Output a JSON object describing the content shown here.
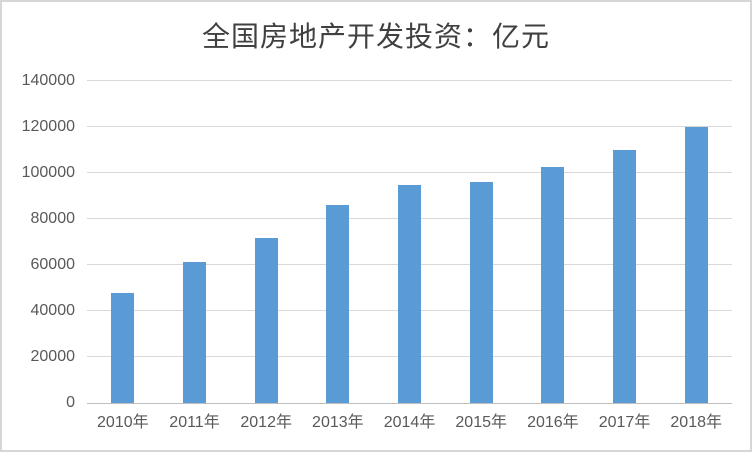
{
  "chart_data": {
    "type": "bar",
    "title": "全国房地产开发投资：亿元",
    "categories": [
      "2010年",
      "2011年",
      "2012年",
      "2013年",
      "2014年",
      "2015年",
      "2016年",
      "2017年",
      "2018年"
    ],
    "values": [
      48000,
      61500,
      71800,
      86000,
      95000,
      96000,
      102500,
      110000,
      120000
    ],
    "ylim": [
      0,
      140000
    ],
    "y_ticks": [
      0,
      20000,
      40000,
      60000,
      80000,
      100000,
      120000,
      140000
    ],
    "grid": true,
    "legend_position": "none",
    "colors": {
      "bar": "#5B9BD5",
      "gridline": "#D9D9D9",
      "axis_line": "#BFBFBF",
      "tick_label": "#595959",
      "title": "#404040",
      "background": "#FFFFFF",
      "frame_border": "#D6D6D6"
    }
  }
}
